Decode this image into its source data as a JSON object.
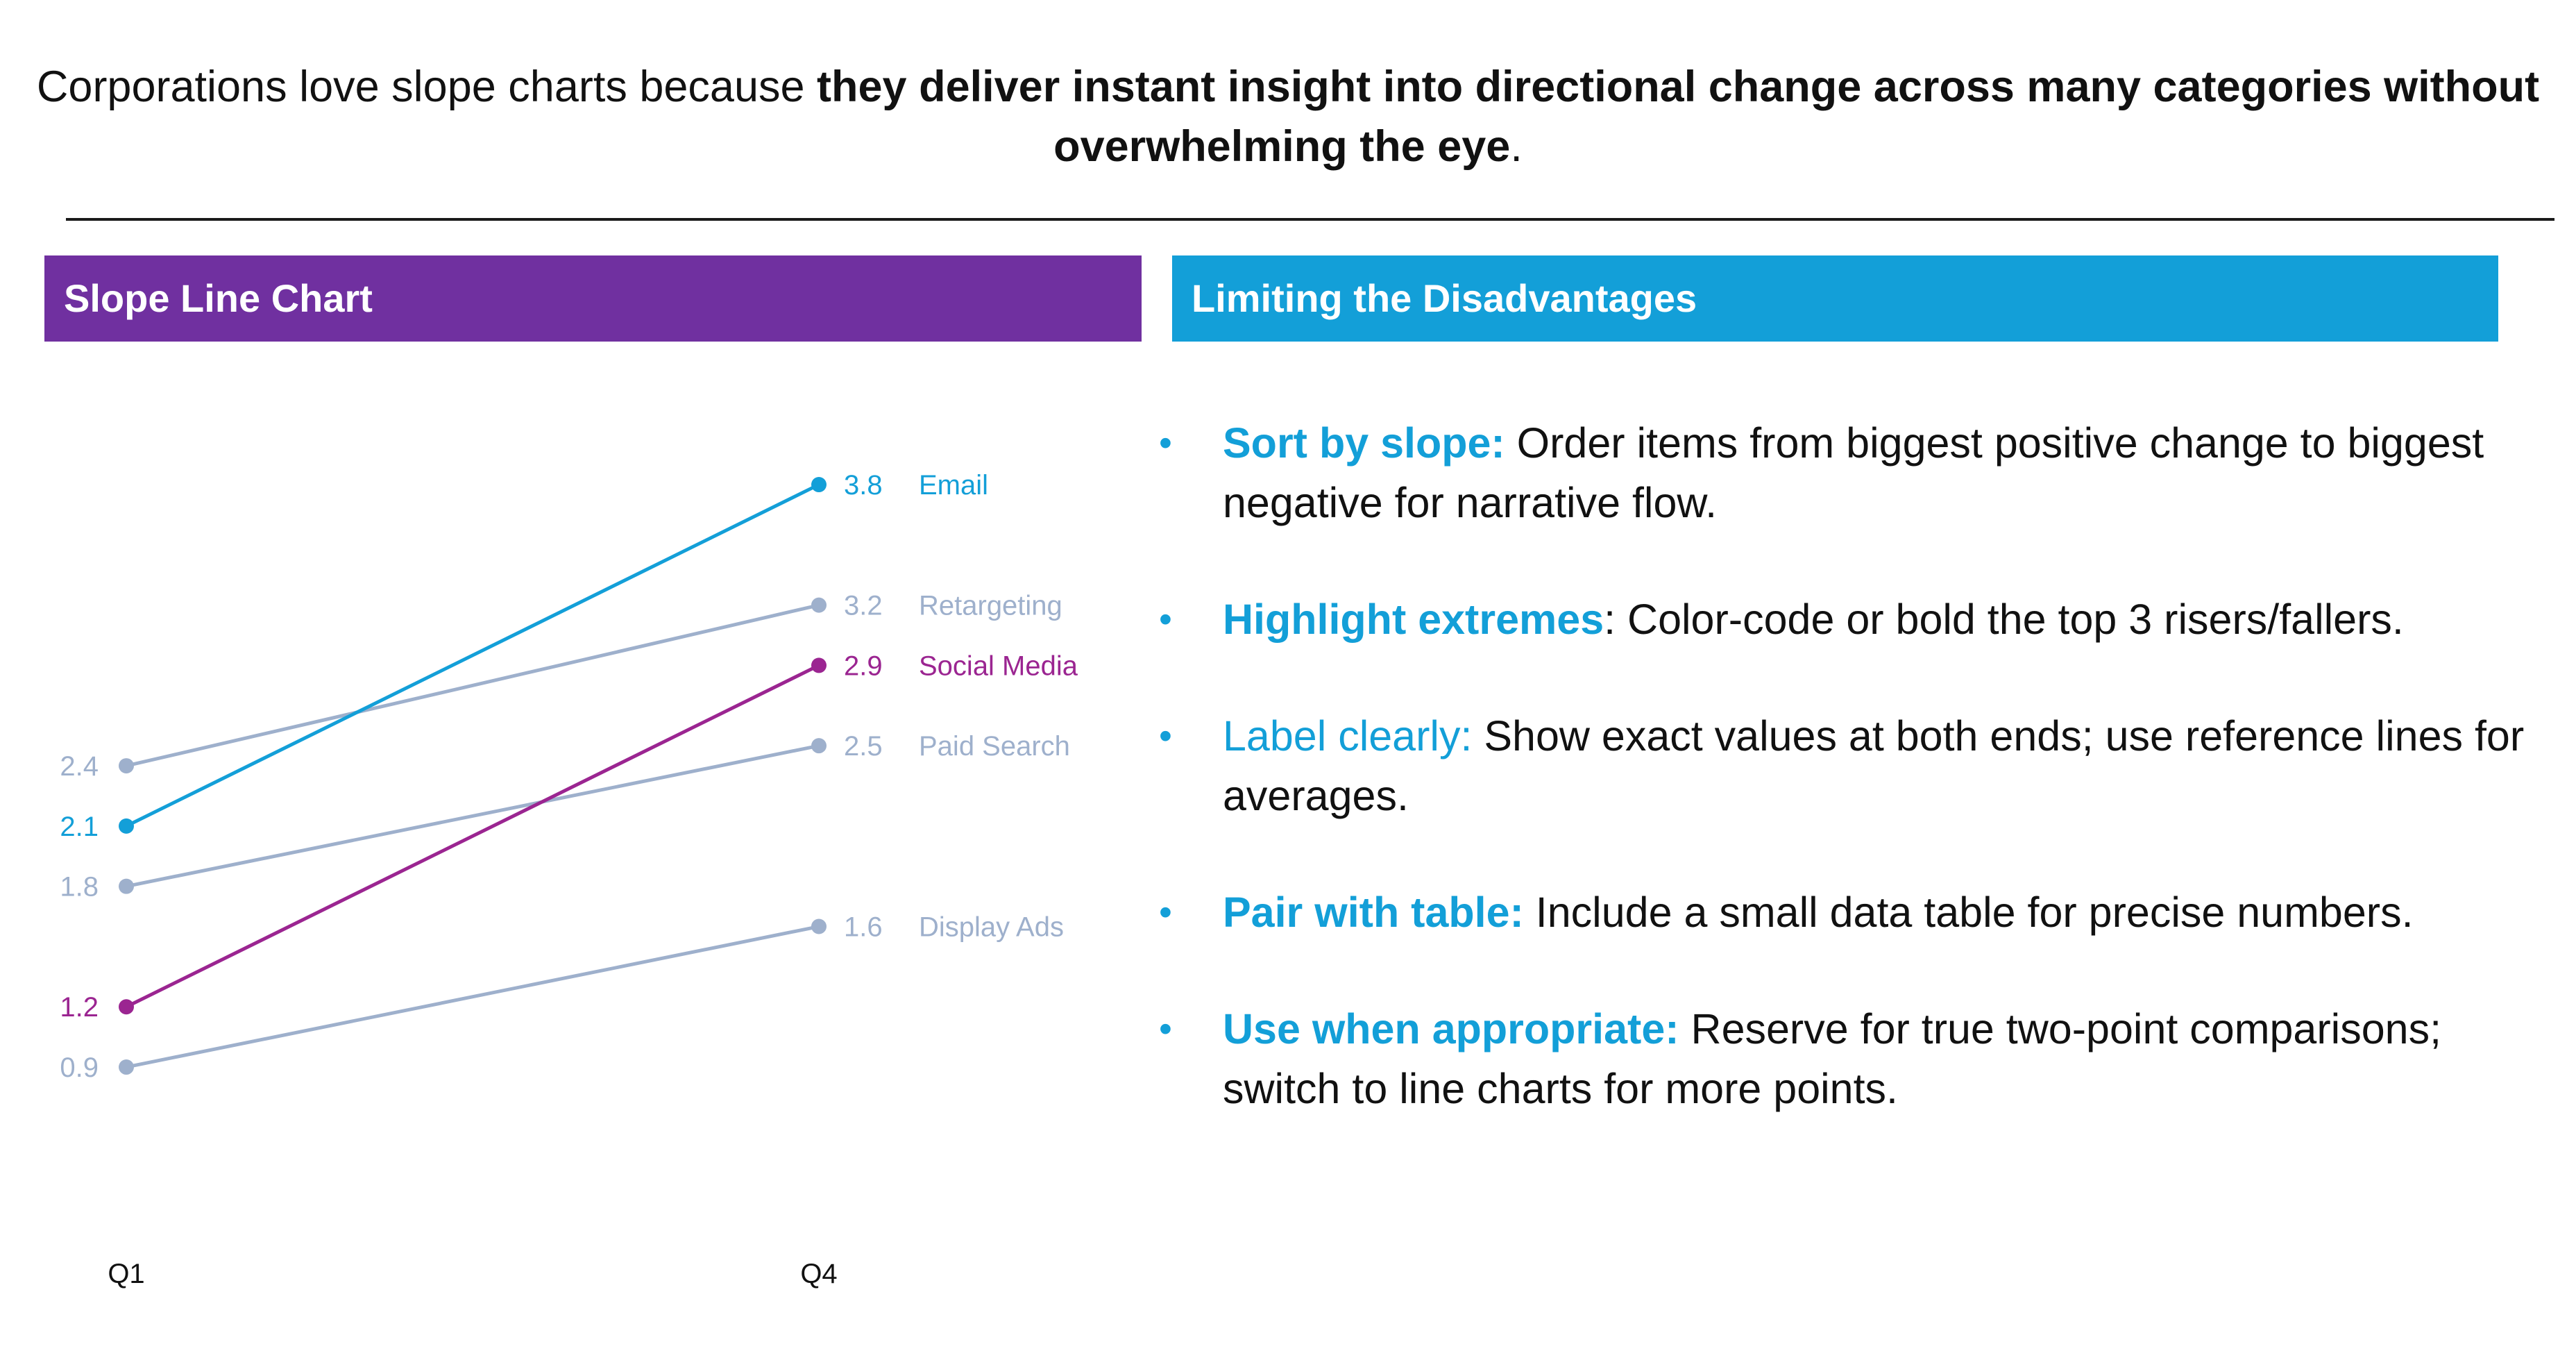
{
  "headline": {
    "normal": "Corporations love slope charts because ",
    "bold": "they deliver instant insight into directional change across many categories without overwhelming the eye",
    "end": "."
  },
  "left_panel": {
    "title": "Slope Line Chart"
  },
  "right_panel": {
    "title": "Limiting the Disadvantages"
  },
  "colors": {
    "purple": "#7030A0",
    "blue": "#139FD8",
    "email": "#139FD8",
    "social": "#9B2591",
    "muted": "#9EB0CC"
  },
  "bullets": [
    {
      "lead": "Sort by slope:",
      "lead_bold": true,
      "text": " Order items from biggest positive change to biggest negative for narrative flow."
    },
    {
      "lead": "Highlight extremes",
      "lead_bold": true,
      "text": ": Color-code or bold the top 3 risers/fallers."
    },
    {
      "lead": "Label clearly:",
      "lead_bold": false,
      "text": " Show exact values at both ends; use reference lines for averages."
    },
    {
      "lead": "Pair with table:",
      "lead_bold": true,
      "text": " Include a small data table for precise numbers."
    },
    {
      "lead": "Use when appropriate:",
      "lead_bold": true,
      "text": " Reserve for true two-point comparisons; switch to line charts for more points."
    }
  ],
  "chart_data": {
    "type": "line",
    "x": [
      "Q1",
      "Q4"
    ],
    "ylim": [
      0,
      4.5
    ],
    "grid": false,
    "legend": "none",
    "series": [
      {
        "name": "Retargeting",
        "values": [
          2.4,
          3.2
        ],
        "color": "#9EB0CC",
        "labels": [
          "2.4",
          "3.2"
        ]
      },
      {
        "name": "Paid Search",
        "values": [
          1.8,
          2.5
        ],
        "color": "#9EB0CC",
        "labels": [
          "1.8",
          "2.5"
        ]
      },
      {
        "name": "Display Ads",
        "values": [
          0.9,
          1.6
        ],
        "color": "#9EB0CC",
        "labels": [
          "0.9",
          "1.6"
        ]
      },
      {
        "name": "Social Media",
        "values": [
          1.2,
          2.9
        ],
        "color": "#9B2591",
        "labels": [
          "1.2",
          "2.9"
        ]
      },
      {
        "name": "Email",
        "values": [
          2.1,
          3.8
        ],
        "color": "#139FD8",
        "labels": [
          "2.1",
          "3.8"
        ]
      }
    ]
  }
}
